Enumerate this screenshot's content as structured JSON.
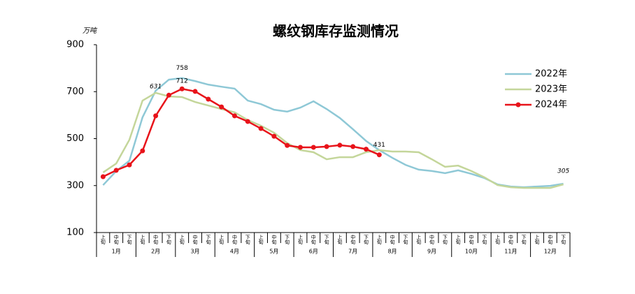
{
  "chart_data": {
    "type": "line",
    "title": "螺纹钢库存监测情况",
    "unit": "万吨",
    "categories": [
      "上旬",
      "中旬",
      "下旬",
      "上旬",
      "中旬",
      "下旬",
      "上旬",
      "中旬",
      "下旬",
      "上旬",
      "中旬",
      "下旬",
      "上旬",
      "中旬",
      "下旬",
      "上旬",
      "中旬",
      "下旬",
      "上旬",
      "中旬",
      "下旬",
      "上旬",
      "中旬",
      "下旬",
      "上旬",
      "中旬",
      "下旬",
      "上旬",
      "中旬",
      "下旬",
      "上旬",
      "中旬",
      "下旬",
      "上旬",
      "中旬",
      "下旬"
    ],
    "groups": [
      "1月",
      "2月",
      "3月",
      "4月",
      "5月",
      "6月",
      "7月",
      "8月",
      "9月",
      "10月",
      "11月",
      "12月"
    ],
    "series": [
      {
        "name": "2022年",
        "color": "#8ec8d6",
        "marker": false,
        "values": [
          302,
          362,
          406,
          591,
          704,
          751,
          758,
          745,
          730,
          721,
          713,
          662,
          647,
          623,
          615,
          632,
          659,
          626,
          588,
          540,
          490,
          451,
          418,
          388,
          368,
          362,
          353,
          365,
          350,
          332,
          305,
          296,
          293,
          296,
          299,
          308
        ]
      },
      {
        "name": "2023年",
        "color": "#c4d69a",
        "marker": false,
        "values": [
          356,
          394,
          495,
          662,
          695,
          680,
          677,
          656,
          641,
          626,
          612,
          579,
          555,
          525,
          481,
          451,
          442,
          412,
          421,
          421,
          442,
          451,
          445,
          445,
          442,
          412,
          380,
          385,
          362,
          335,
          302,
          293,
          290,
          290,
          290,
          305
        ]
      },
      {
        "name": "2024年",
        "color": "#e8131a",
        "marker": true,
        "values": [
          338,
          365,
          388,
          448,
          597,
          685,
          712,
          701,
          668,
          635,
          597,
          573,
          543,
          510,
          471,
          463,
          463,
          466,
          472,
          466,
          455,
          431,
          null,
          null,
          null,
          null,
          null,
          null,
          null,
          null,
          null,
          null,
          null,
          null,
          null,
          null
        ]
      }
    ],
    "annotations": [
      {
        "text": "631"
      }
    ],
    "ylim": [
      100,
      900
    ],
    "yticks": [
      100,
      300,
      500,
      700,
      900
    ],
    "legend": "right"
  }
}
